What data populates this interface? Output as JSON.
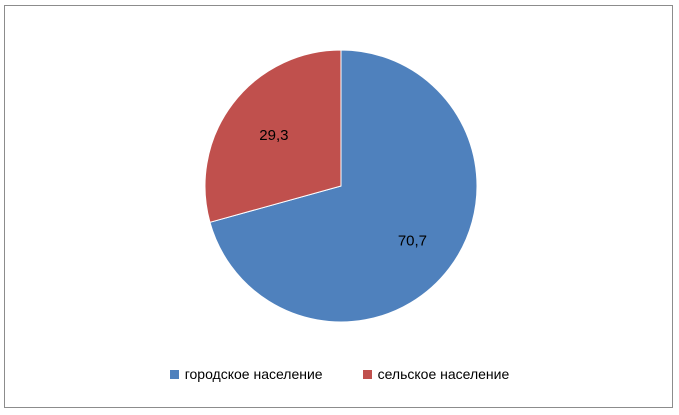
{
  "chart_data": {
    "type": "pie",
    "categories": [
      "городское население",
      "сельское население"
    ],
    "values": [
      70.7,
      29.3
    ],
    "value_labels": [
      "70,7",
      "29,3"
    ],
    "colors": [
      "#4F81BD",
      "#C0504D"
    ],
    "start_angle": "12 o'clock",
    "direction": "clockwise",
    "legend_position": "bottom"
  }
}
